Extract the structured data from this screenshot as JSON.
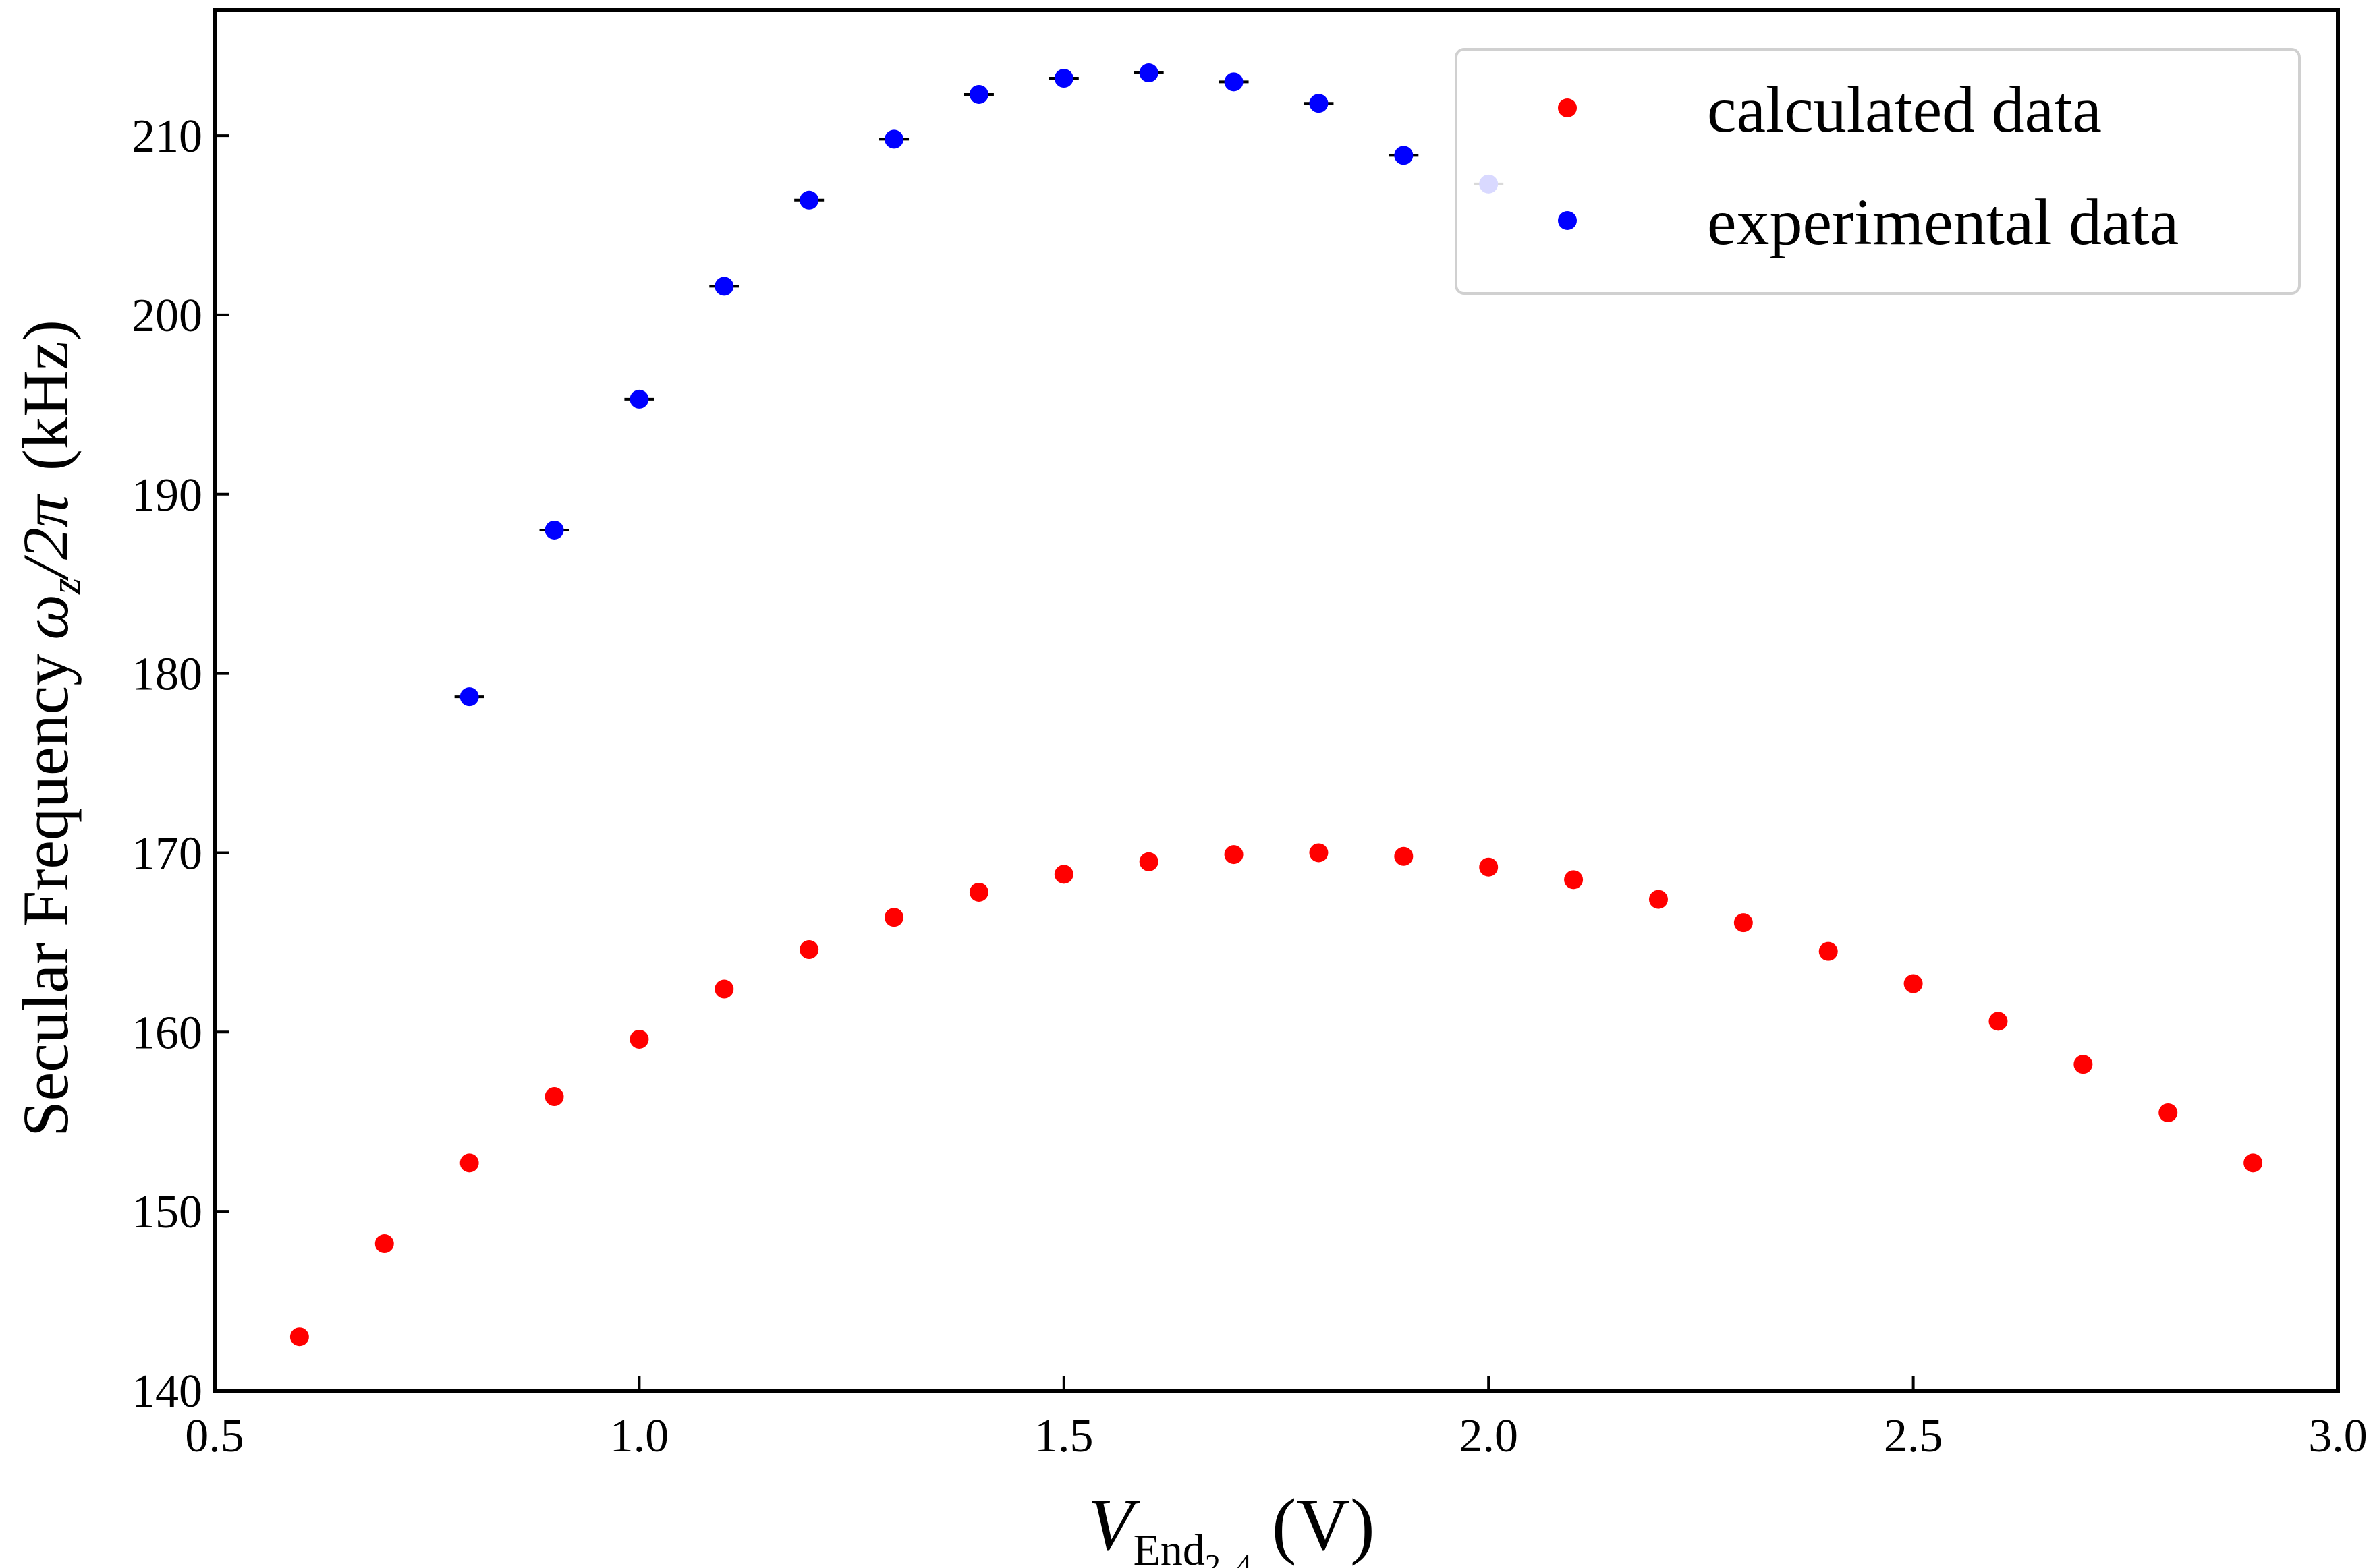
{
  "chart_data": {
    "type": "scatter",
    "title": "",
    "xlabel": {
      "main": "V",
      "sub": "End",
      "subsub": "2, 4",
      "unit": "(V)"
    },
    "ylabel": {
      "text": "Secular Frequency",
      "symbol": "ω",
      "sub": "z",
      "suffix": "/2π",
      "unit": "(kHz)"
    },
    "xlim": [
      0.5,
      3.0
    ],
    "ylim": [
      140,
      217
    ],
    "xticks": [
      0.5,
      1.0,
      1.5,
      2.0,
      2.5,
      3.0
    ],
    "xtick_labels": [
      "0.5",
      "1.0",
      "1.5",
      "2.0",
      "2.5",
      "3.0"
    ],
    "yticks": [
      140,
      150,
      160,
      170,
      180,
      190,
      200,
      210
    ],
    "ytick_labels": [
      "140",
      "150",
      "160",
      "170",
      "180",
      "190",
      "200",
      "210"
    ],
    "grid": false,
    "legend_position": "top-right",
    "series": [
      {
        "name": "calculated data",
        "color": "#ff0000",
        "x": [
          0.6,
          0.7,
          0.8,
          0.9,
          1.0,
          1.1,
          1.2,
          1.3,
          1.4,
          1.5,
          1.6,
          1.7,
          1.8,
          1.9,
          2.0,
          2.1,
          2.2,
          2.3,
          2.4,
          2.5,
          2.6,
          2.7,
          2.8,
          2.9
        ],
        "y": [
          143.0,
          148.2,
          152.7,
          156.4,
          159.6,
          162.4,
          164.6,
          166.4,
          167.8,
          168.8,
          169.5,
          169.9,
          170.0,
          169.8,
          169.2,
          168.5,
          167.4,
          166.1,
          164.5,
          162.7,
          160.6,
          158.2,
          155.5,
          152.7
        ]
      },
      {
        "name": "experimental data",
        "color": "#0000ff",
        "error_bars": true,
        "x": [
          0.8,
          0.9,
          1.0,
          1.1,
          1.2,
          1.3,
          1.4,
          1.5,
          1.6,
          1.7,
          1.8,
          1.9,
          2.0
        ],
        "y": [
          178.7,
          188.0,
          195.3,
          201.6,
          206.4,
          209.8,
          212.3,
          213.2,
          213.5,
          213.0,
          211.8,
          208.9,
          207.3
        ]
      }
    ]
  }
}
